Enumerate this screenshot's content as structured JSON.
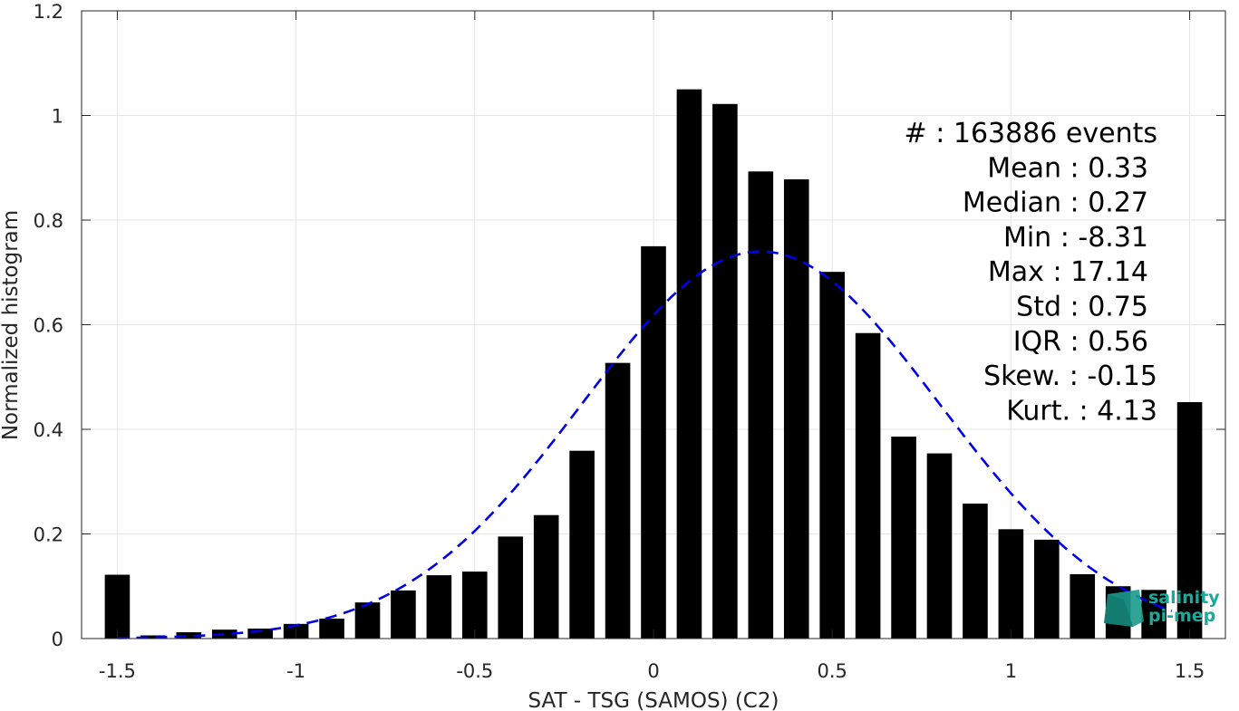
{
  "chart_data": {
    "type": "bar",
    "xlabel": "SAT - TSG (SAMOS) (C2)",
    "ylabel": "Normalized histogram",
    "xlim": [
      -1.6,
      1.6
    ],
    "ylim": [
      0,
      1.2
    ],
    "xticks": [
      -1.5,
      -1,
      -0.5,
      0,
      0.5,
      1,
      1.5
    ],
    "xtick_labels": [
      "-1.5",
      "-1",
      "-0.5",
      "0",
      "0.5",
      "1",
      "1.5"
    ],
    "yticks": [
      0,
      0.2,
      0.4,
      0.6,
      0.8,
      1,
      1.2
    ],
    "ytick_labels": [
      "0",
      "0.2",
      "0.4",
      "0.6",
      "0.8",
      "1",
      "1.2"
    ],
    "grid": true,
    "bar_color": "#000000",
    "bar_width": 0.07,
    "bars": {
      "x": [
        -1.5,
        -1.4,
        -1.3,
        -1.2,
        -1.1,
        -1.0,
        -0.9,
        -0.8,
        -0.7,
        -0.6,
        -0.5,
        -0.4,
        -0.3,
        -0.2,
        -0.1,
        0.0,
        0.1,
        0.2,
        0.3,
        0.4,
        0.5,
        0.6,
        0.7,
        0.8,
        0.9,
        1.0,
        1.1,
        1.2,
        1.3,
        1.4,
        1.5
      ],
      "values": [
        0.122,
        0.006,
        0.012,
        0.017,
        0.019,
        0.028,
        0.038,
        0.069,
        0.092,
        0.121,
        0.128,
        0.195,
        0.236,
        0.359,
        0.527,
        0.75,
        1.05,
        1.022,
        0.893,
        0.878,
        0.701,
        0.584,
        0.386,
        0.354,
        0.258,
        0.209,
        0.189,
        0.123,
        0.1,
        0.093,
        0.452
      ]
    },
    "fit_curve": {
      "type": "gaussian",
      "mean": 0.3,
      "peak": 0.74,
      "sigma": 0.5,
      "x_range": [
        -1.5,
        1.45
      ],
      "color": "#0000e6",
      "style": "dashed"
    },
    "annotations": [
      {
        "text": "#  : 163886 events"
      },
      {
        "text": "Mean : 0.33"
      },
      {
        "text": "Median : 0.27"
      },
      {
        "text": "Min : -8.31"
      },
      {
        "text": "Max : 17.14"
      },
      {
        "text": "Std : 0.75"
      },
      {
        "text": "IQR : 0.56"
      },
      {
        "text": "Skew. : -0.15"
      },
      {
        "text": "Kurt. : 4.13"
      }
    ]
  },
  "logo": {
    "line1": "salinity",
    "line2": "pi-mep",
    "color": "#1aa99a"
  }
}
